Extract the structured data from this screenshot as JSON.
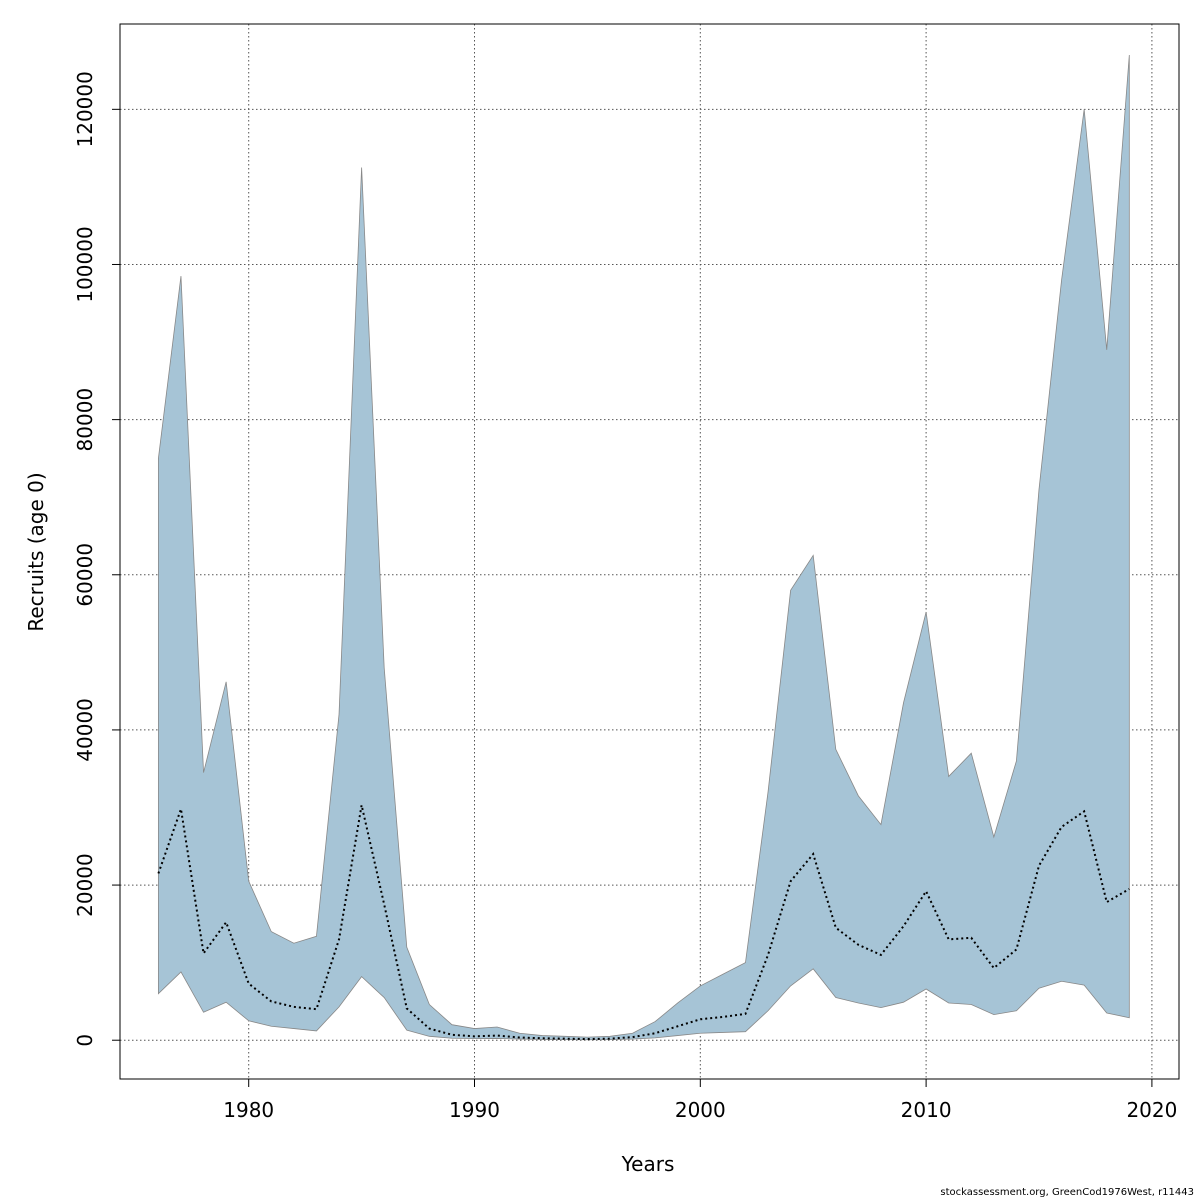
{
  "chart_data": {
    "type": "area",
    "title": "",
    "xlabel": "Years",
    "ylabel": "Recruits (age 0)",
    "xlim": [
      1974.3,
      2021.2
    ],
    "ylim": [
      -5000,
      131000
    ],
    "x_ticks": [
      1980,
      1990,
      2000,
      2010,
      2020
    ],
    "y_ticks": [
      0,
      20000,
      40000,
      60000,
      80000,
      100000,
      120000
    ],
    "grid": true,
    "band_color": "#a6c4d6",
    "band_edge_color": "#888888",
    "median_color": "#000000",
    "x": [
      1976,
      1977,
      1978,
      1979,
      1980,
      1981,
      1982,
      1983,
      1984,
      1985,
      1986,
      1987,
      1988,
      1989,
      1990,
      1991,
      1992,
      1993,
      1994,
      1995,
      1996,
      1997,
      1998,
      1999,
      2000,
      2001,
      2002,
      2003,
      2004,
      2005,
      2006,
      2007,
      2008,
      2009,
      2010,
      2011,
      2012,
      2013,
      2014,
      2015,
      2016,
      2017,
      2018,
      2019
    ],
    "series": [
      {
        "values": [
          75000,
          98500,
          34500,
          46200,
          20500,
          14000,
          12500,
          13400,
          42000,
          112500,
          48000,
          12000,
          4600,
          2000,
          1500,
          1700,
          900,
          600,
          500,
          400,
          500,
          900,
          2400,
          4800,
          7000,
          8500,
          10000,
          32000,
          58000,
          62500,
          37500,
          31500,
          27800,
          43500,
          55200,
          34000,
          37000,
          26200,
          36000,
          71000,
          98000,
          120000,
          89000,
          127000
        ]
      },
      {
        "values": [
          21500,
          29800,
          11200,
          15200,
          7300,
          5000,
          4300,
          4000,
          13000,
          30300,
          17500,
          4100,
          1500,
          700,
          500,
          600,
          350,
          250,
          200,
          150,
          200,
          400,
          900,
          1800,
          2700,
          3000,
          3400,
          11000,
          20500,
          24000,
          14500,
          12300,
          11000,
          14700,
          19200,
          13000,
          13200,
          9300,
          11700,
          22500,
          27500,
          29500,
          17800,
          19500
        ]
      },
      {
        "values": [
          6000,
          8800,
          3600,
          4900,
          2500,
          1800,
          1500,
          1200,
          4300,
          8200,
          5500,
          1300,
          500,
          250,
          200,
          230,
          150,
          100,
          80,
          60,
          80,
          150,
          300,
          600,
          900,
          1000,
          1100,
          3800,
          7000,
          9200,
          5500,
          4800,
          4200,
          4900,
          6600,
          4800,
          4600,
          3300,
          3800,
          6700,
          7600,
          7100,
          3500,
          2900
        ]
      }
    ]
  },
  "credit_text": "stockassessment.org, GreenCod1976West, r11443"
}
